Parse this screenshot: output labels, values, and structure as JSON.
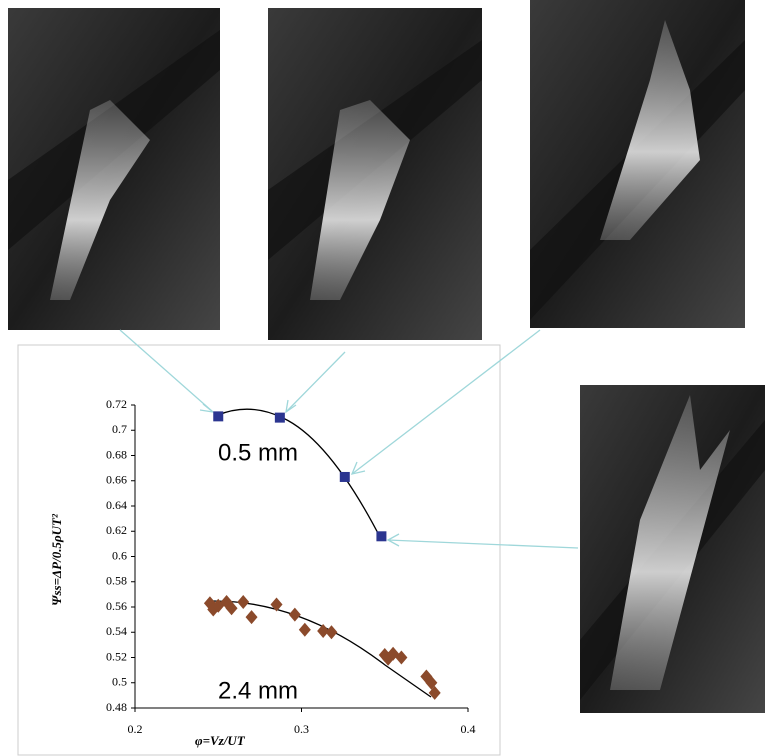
{
  "chart_data": {
    "type": "scatter",
    "x_label": "φ=Vz/UT",
    "y_label": "Ψss=ΔP/0.5ρUT²",
    "annotations": [
      "0.5 mm",
      "2.4 mm"
    ],
    "xlim": [
      0.2,
      0.4
    ],
    "xticks": [
      0.2,
      0.3,
      0.4
    ],
    "ylim": [
      0.48,
      0.72
    ],
    "yticks": [
      0.48,
      0.5,
      0.52,
      0.54,
      0.56,
      0.58,
      0.6,
      0.62,
      0.64,
      0.66,
      0.68,
      0.7,
      0.72
    ],
    "grid": false,
    "series": [
      {
        "color": "#2b3590",
        "marker": "square",
        "x": [
          0.25,
          0.287,
          0.326,
          0.348
        ],
        "values": [
          0.711,
          0.71,
          0.663,
          0.616
        ]
      },
      {
        "color": "#8b4a2b",
        "marker": "diamond",
        "x": [
          0.245,
          0.247,
          0.25,
          0.255,
          0.258,
          0.265,
          0.27,
          0.285,
          0.296,
          0.302,
          0.313,
          0.318,
          0.35,
          0.352,
          0.355,
          0.36,
          0.375,
          0.378,
          0.38
        ],
        "values": [
          0.563,
          0.558,
          0.561,
          0.564,
          0.559,
          0.564,
          0.552,
          0.562,
          0.554,
          0.542,
          0.541,
          0.54,
          0.522,
          0.519,
          0.523,
          0.52,
          0.505,
          0.5,
          0.492
        ]
      }
    ]
  }
}
